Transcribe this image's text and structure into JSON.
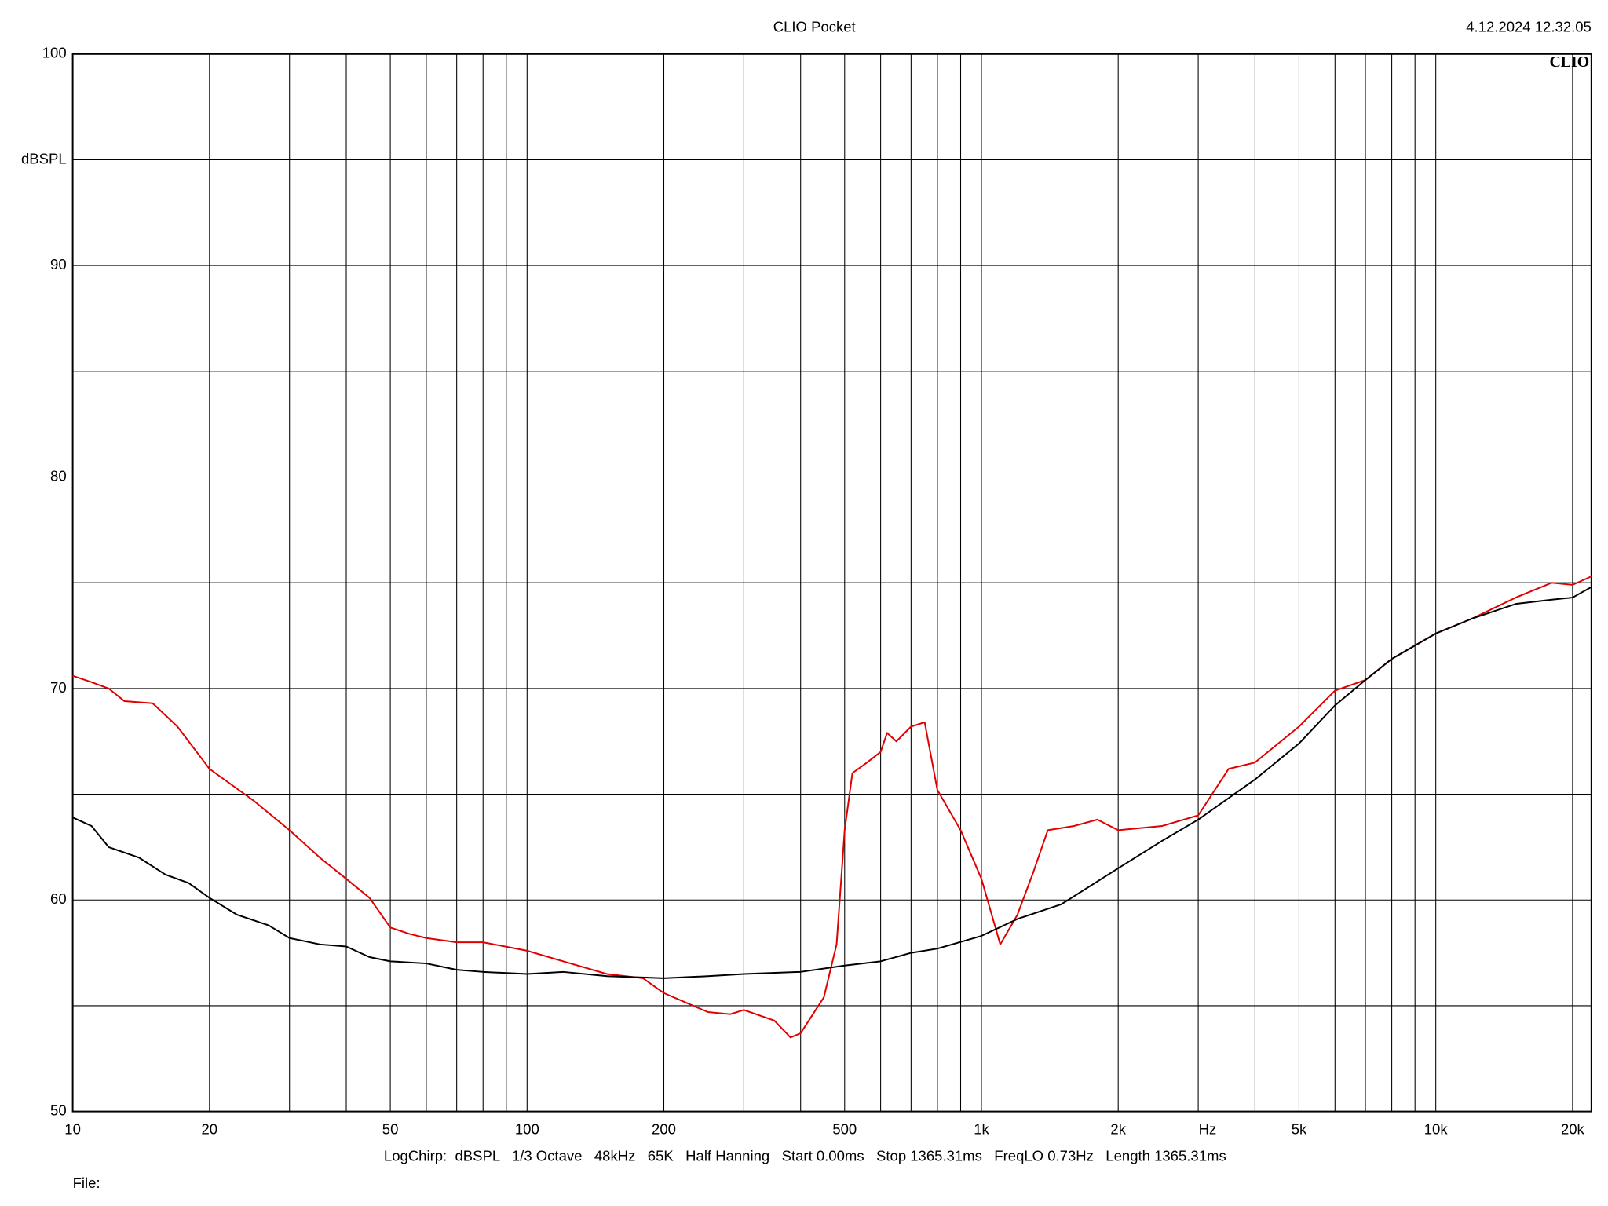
{
  "chart_data": {
    "type": "line",
    "title": "CLIO Pocket",
    "timestamp": "4.12.2024 12.32.05",
    "logo": "CLIO",
    "y_label": "dBSPL",
    "x_label": "Hz",
    "settings": "LogChirp:  dBSPL   1/3 Octave   48kHz   65K   Half Hanning   Start 0.00ms   Stop 1365.31ms   FreqLO 0.73Hz   Length 1365.31ms",
    "file_label": "File:",
    "x_log": true,
    "grid": true,
    "xlim": [
      10,
      22000
    ],
    "ylim": [
      50,
      100
    ],
    "xticks": [
      10,
      20,
      50,
      100,
      200,
      500,
      {
        "value": 1000,
        "label": "1k"
      },
      {
        "value": 2000,
        "label": "2k"
      },
      {
        "value": 5000,
        "label": "5k"
      },
      {
        "value": 10000,
        "label": "10k"
      },
      {
        "value": 20000,
        "label": "20k"
      }
    ],
    "x_minor_grid": [
      30,
      40,
      60,
      70,
      80,
      90,
      300,
      400,
      600,
      700,
      800,
      900,
      3000,
      4000,
      6000,
      7000,
      8000,
      9000
    ],
    "yticks": [
      50,
      60,
      70,
      80,
      90,
      100
    ],
    "y_minor_grid": [
      55,
      65,
      75,
      85,
      95
    ],
    "series": [
      {
        "color": "#e00000",
        "x": [
          10,
          11,
          12,
          13,
          15,
          17,
          20,
          25,
          30,
          35,
          40,
          45,
          50,
          55,
          60,
          70,
          80,
          100,
          120,
          150,
          180,
          200,
          250,
          280,
          300,
          350,
          380,
          400,
          450,
          480,
          500,
          520,
          560,
          600,
          620,
          650,
          700,
          750,
          800,
          900,
          1000,
          1100,
          1200,
          1300,
          1400,
          1600,
          1800,
          2000,
          2500,
          3000,
          3500,
          4000,
          5000,
          6000,
          7000,
          8000,
          10000,
          12000,
          15000,
          18000,
          20000,
          22000
        ],
        "values": [
          70.6,
          70.3,
          70.0,
          69.4,
          69.3,
          68.2,
          66.2,
          64.7,
          63.3,
          62.0,
          61.0,
          60.1,
          58.7,
          58.4,
          58.2,
          58.0,
          58.0,
          57.6,
          57.1,
          56.5,
          56.3,
          55.6,
          54.7,
          54.6,
          54.8,
          54.3,
          53.5,
          53.7,
          55.4,
          57.9,
          63.3,
          66.0,
          66.5,
          67.0,
          67.9,
          67.5,
          68.2,
          68.4,
          65.2,
          63.3,
          61.0,
          57.9,
          59.3,
          61.3,
          63.3,
          63.5,
          63.8,
          63.3,
          63.5,
          64.0,
          66.2,
          66.5,
          68.2,
          69.9,
          70.4,
          71.4,
          72.6,
          73.3,
          74.3,
          75.0,
          74.9,
          75.3
        ]
      },
      {
        "color": "#000000",
        "x": [
          10,
          11,
          12,
          14,
          16,
          18,
          20,
          23,
          27,
          30,
          35,
          40,
          45,
          50,
          60,
          70,
          80,
          100,
          120,
          150,
          200,
          250,
          300,
          400,
          500,
          600,
          700,
          800,
          1000,
          1200,
          1500,
          2000,
          2500,
          3000,
          4000,
          5000,
          6000,
          7000,
          8000,
          10000,
          12000,
          15000,
          18000,
          20000,
          22000
        ],
        "values": [
          63.9,
          63.5,
          62.5,
          62.0,
          61.2,
          60.8,
          60.1,
          59.3,
          58.8,
          58.2,
          57.9,
          57.8,
          57.3,
          57.1,
          57.0,
          56.7,
          56.6,
          56.5,
          56.6,
          56.4,
          56.3,
          56.4,
          56.5,
          56.6,
          56.9,
          57.1,
          57.5,
          57.7,
          58.3,
          59.1,
          59.8,
          61.5,
          62.8,
          63.8,
          65.7,
          67.4,
          69.2,
          70.4,
          71.4,
          72.6,
          73.3,
          74.0,
          74.2,
          74.3,
          74.8
        ]
      }
    ]
  }
}
